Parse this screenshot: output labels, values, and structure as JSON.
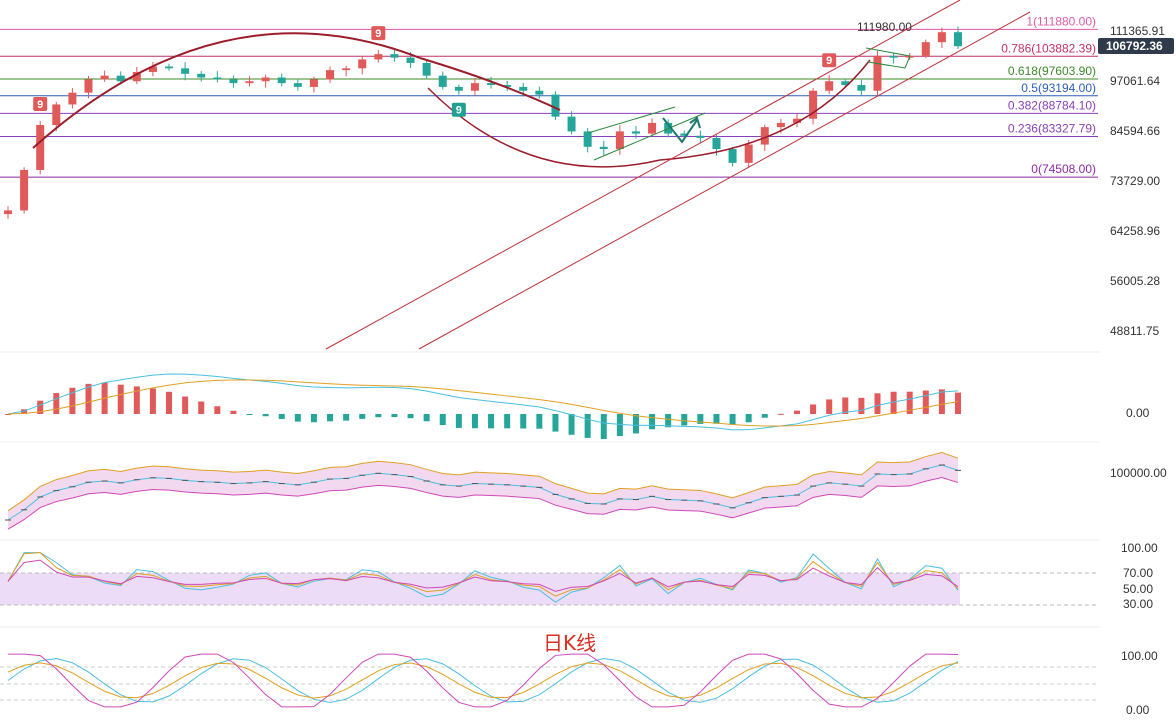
{
  "chart_data": {
    "type": "candlestick",
    "caption": "日K线",
    "price_axis": {
      "ticks": [
        "111365.91",
        "97061.64",
        "84594.66",
        "73729.00",
        "64258.96",
        "56005.28",
        "48811.75"
      ],
      "current_price": "106792.36",
      "current_price_color": "#2f3a4a",
      "scale": "log",
      "range": [
        45000,
        118000
      ]
    },
    "high_label": "111980.00",
    "fib_levels": [
      {
        "ratio": "1",
        "price": "111880.00",
        "label": "1(111880.00)",
        "color": "#e05aa8",
        "value": 111880
      },
      {
        "ratio": "0.786",
        "price": "103882.39",
        "label": "0.786(103882.39)",
        "color": "#c0306a",
        "value": 103882.39
      },
      {
        "ratio": "0.618",
        "price": "97603.90",
        "label": "0.618(97603.90)",
        "color": "#3d8a2a",
        "value": 97603.9
      },
      {
        "ratio": "0.5",
        "price": "93194.00",
        "label": "0.5(93194.00)",
        "color": "#2b5fb8",
        "value": 93194
      },
      {
        "ratio": "0.382",
        "price": "88784.10",
        "label": "0.382(88784.10)",
        "color": "#8a3fb8",
        "value": 88784.1
      },
      {
        "ratio": "0.236",
        "price": "83327.79",
        "label": "0.236(83327.79)",
        "color": "#8a3fb8",
        "value": 83327.79
      },
      {
        "ratio": "0",
        "price": "74508.00",
        "label": "0(74508.00)",
        "color": "#8a2aa0",
        "value": 74508
      }
    ],
    "td_markers": [
      {
        "text": "9",
        "color": "#e05a5a",
        "i": 2,
        "pos": "above"
      },
      {
        "text": "9",
        "color": "#e05a5a",
        "i": 23,
        "pos": "above"
      },
      {
        "text": "9",
        "color": "#20a090",
        "i": 28,
        "pos": "below"
      },
      {
        "text": "9",
        "color": "#e05a5a",
        "i": 51,
        "pos": "above"
      }
    ],
    "closes": [
      68000,
      76000,
      86000,
      91000,
      94000,
      97500,
      98500,
      97000,
      99500,
      101000,
      100500,
      99000,
      98000,
      97500,
      96500,
      97000,
      98000,
      96500,
      95500,
      97500,
      100000,
      100500,
      103000,
      104500,
      103500,
      102000,
      98500,
      95500,
      94500,
      96500,
      96000,
      95500,
      94500,
      93500,
      88000,
      84500,
      81000,
      80500,
      84500,
      84000,
      86500,
      84000,
      83500,
      83000,
      80500,
      77500,
      81500,
      85500,
      86500,
      87500,
      94500,
      97000,
      96000,
      94500,
      104000,
      103500,
      104000,
      108000,
      111000,
      106800
    ],
    "macd_axis": {
      "label": "0.00"
    },
    "boll_axis": {
      "label": "100000.00"
    },
    "rsi_axis": {
      "labels": [
        "100.00",
        "70.00",
        "50.00",
        "30.00"
      ]
    },
    "kdj_axis": {
      "labels": [
        "100.00",
        "0.00"
      ]
    },
    "colors": {
      "up": "#e05a5a",
      "down": "#26a69a",
      "arc": "#9b1c2a",
      "channel": "#c0303a",
      "flag": "#2a8a3a",
      "arrow": "#1a7a6e"
    }
  }
}
